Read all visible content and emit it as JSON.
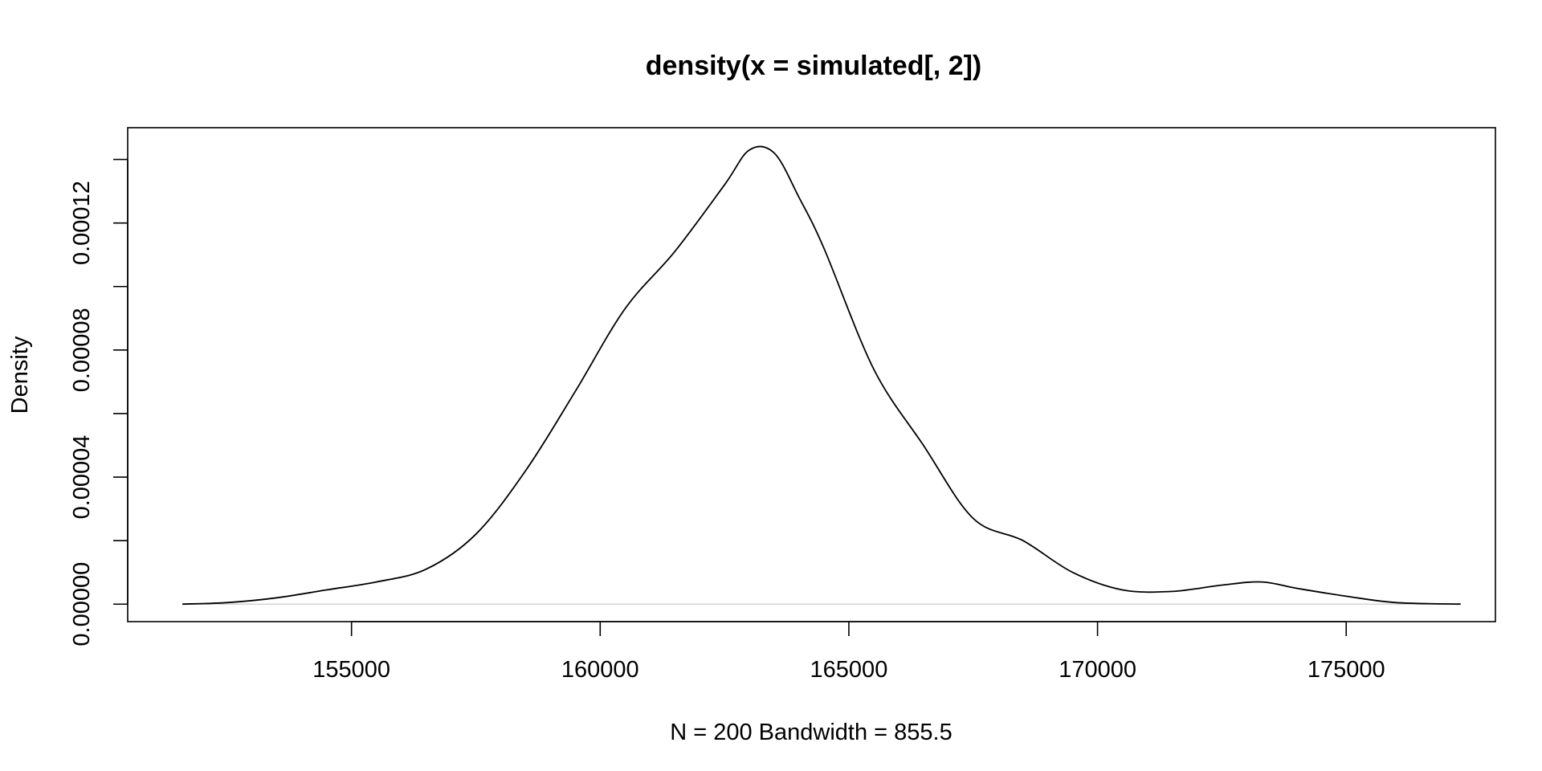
{
  "chart_data": {
    "type": "line",
    "title": "density(x = simulated[, 2])",
    "xlabel": "N = 200   Bandwidth = 855.5",
    "ylabel": "Density",
    "xlim": [
      150500,
      178000
    ],
    "ylim": [
      -5.5e-06,
      0.00015
    ],
    "x_ticks": [
      155000,
      160000,
      165000,
      170000,
      175000
    ],
    "x_tick_labels": [
      "155000",
      "160000",
      "165000",
      "170000",
      "175000"
    ],
    "y_ticks": [
      0,
      2e-05,
      4e-05,
      6e-05,
      8e-05,
      0.0001,
      0.00012,
      0.00014
    ],
    "y_tick_labels": [
      "0.00000",
      "",
      "0.00004",
      "",
      "0.00008",
      "",
      "0.00012",
      ""
    ],
    "baseline": 0,
    "grid": false,
    "colors": {
      "line": "#000000",
      "baseline": "#d3d3d3",
      "frame": "#000000"
    },
    "series": [
      {
        "x": [
          151600,
          152500,
          153500,
          154500,
          155500,
          156500,
          157500,
          158500,
          159500,
          160500,
          161500,
          162500,
          163000,
          163500,
          164000,
          164500,
          165500,
          166500,
          167500,
          168500,
          169500,
          170500,
          171500,
          172500,
          173300,
          174000,
          175000,
          176000,
          177300
        ],
        "y": [
          0.0,
          5e-07,
          2e-06,
          4.5e-06,
          7e-06,
          1.1e-05,
          2.2e-05,
          4.2e-05,
          6.7e-05,
          9.3e-05,
          0.000111,
          0.000132,
          0.000143,
          0.000142,
          0.000128,
          0.000112,
          7.4e-05,
          5e-05,
          2.7e-05,
          2e-05,
          1e-05,
          4.5e-06,
          4e-06,
          6e-06,
          7e-06,
          5e-06,
          2.5e-06,
          5e-07,
          0.0
        ]
      }
    ]
  }
}
